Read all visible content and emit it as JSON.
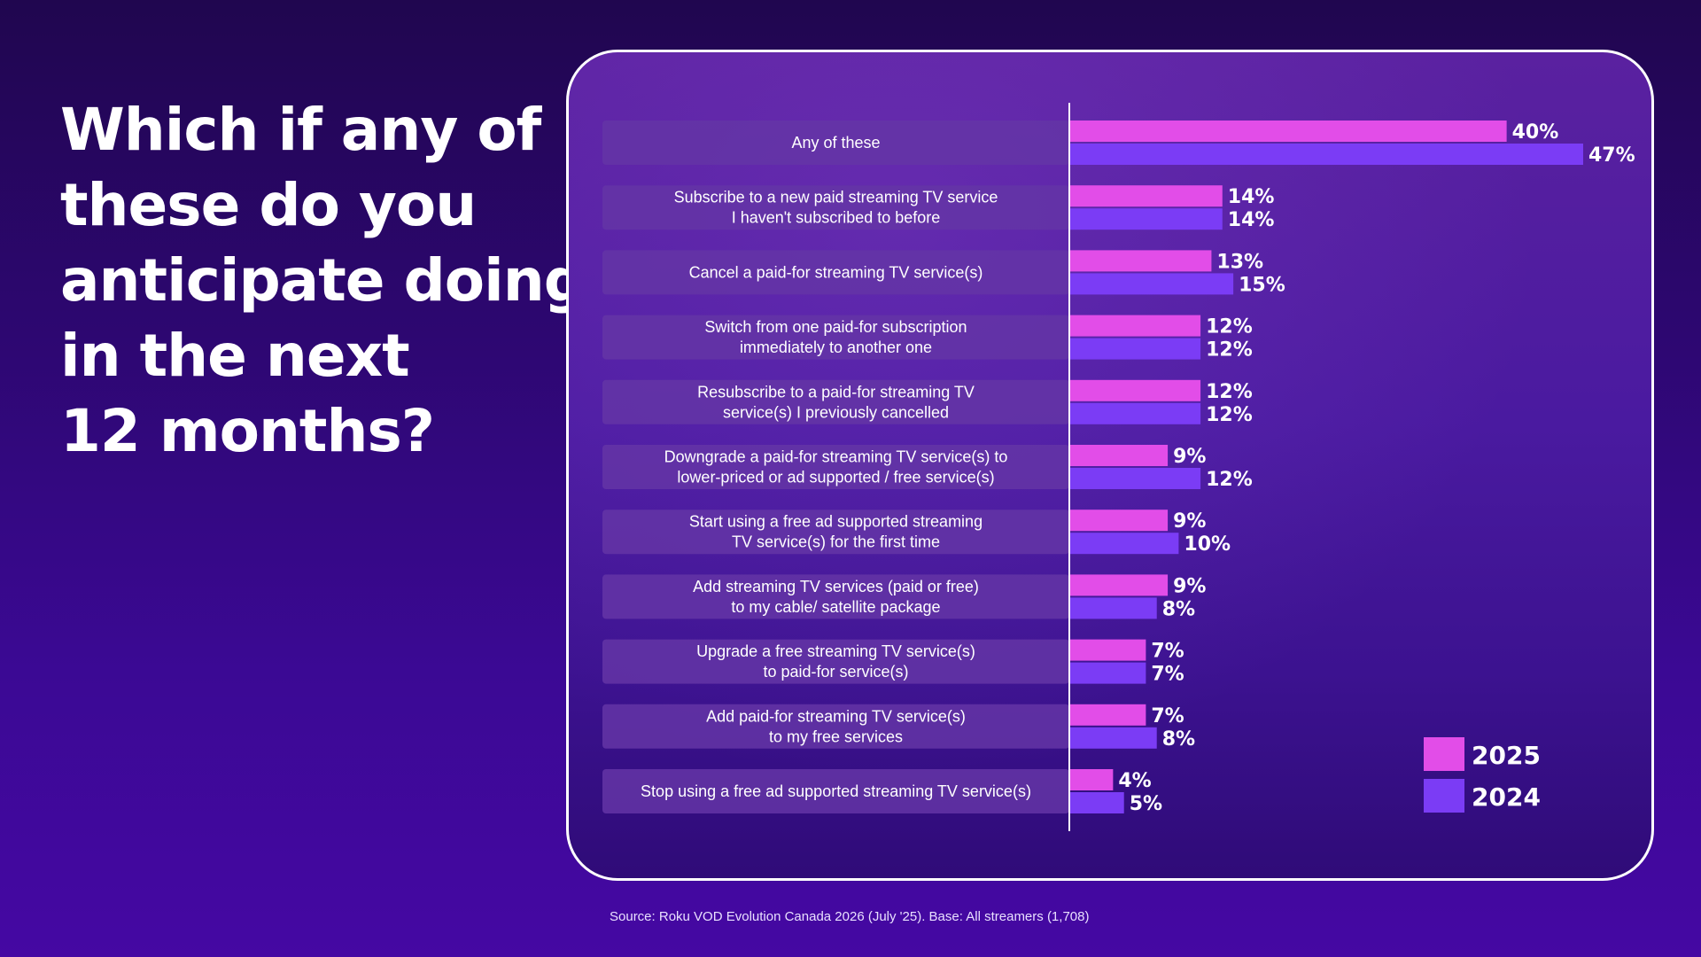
{
  "headline": {
    "lines": [
      "Which if any of",
      "these do you",
      "anticipate doing",
      "in the next",
      "12 months?"
    ]
  },
  "source": "Source: Roku VOD Evolution Canada 2026 (July '25). Base: All streamers (1,708)",
  "colors": {
    "series_2025": "#e24de8",
    "series_2024": "#7b3cf5",
    "label_bg": "#6435a6"
  },
  "chart_data": {
    "type": "bar",
    "orientation": "horizontal",
    "categories": [
      [
        "Any of these"
      ],
      [
        "Subscribe to a new paid streaming TV service",
        "I haven't subscribed to before"
      ],
      [
        "Cancel a paid-for streaming TV service(s)"
      ],
      [
        "Switch from one paid-for subscription",
        "immediately to another one"
      ],
      [
        "Resubscribe to a paid-for streaming TV",
        "service(s) I previously cancelled"
      ],
      [
        "Downgrade a paid-for streaming TV service(s) to",
        "lower-priced or ad supported / free service(s)"
      ],
      [
        "Start using a free ad supported streaming",
        "TV service(s) for the first time"
      ],
      [
        "Add streaming TV services (paid or free)",
        "to my cable/ satellite package"
      ],
      [
        "Upgrade a free streaming TV service(s)",
        "to paid-for service(s)"
      ],
      [
        "Add paid-for streaming TV service(s)",
        "to my free services"
      ],
      [
        "Stop using a free ad supported streaming TV service(s)"
      ]
    ],
    "series": [
      {
        "name": "2025",
        "values": [
          40,
          14,
          13,
          12,
          12,
          9,
          9,
          9,
          7,
          7,
          4
        ]
      },
      {
        "name": "2024",
        "values": [
          47,
          14,
          15,
          12,
          12,
          12,
          10,
          8,
          7,
          8,
          5
        ]
      }
    ],
    "value_suffix": "%",
    "xlim": [
      0,
      47
    ],
    "legend": "bottom-right",
    "grid": false
  }
}
